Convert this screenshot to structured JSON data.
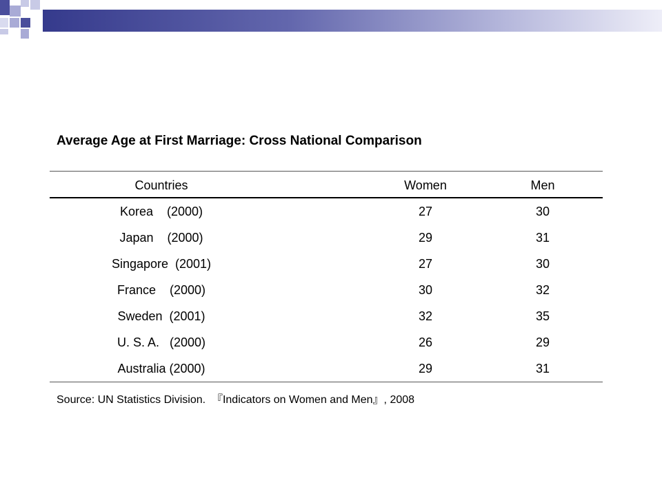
{
  "title": "Average Age at First Marriage: Cross National Comparison",
  "table": {
    "headers": [
      "Countries",
      "Women",
      "Men"
    ],
    "rows": [
      {
        "country": "Korea    (2000)",
        "women": "27",
        "men": "30"
      },
      {
        "country": "Japan    (2000)",
        "women": "29",
        "men": "31"
      },
      {
        "country": "Singapore  (2001)",
        "women": "27",
        "men": "30"
      },
      {
        "country": "France    (2000)",
        "women": "30",
        "men": "32"
      },
      {
        "country": "Sweden  (2001)",
        "women": "32",
        "men": "35"
      },
      {
        "country": "U. S. A.   (2000)",
        "women": "26",
        "men": "29"
      },
      {
        "country": "Australia (2000)",
        "women": "29",
        "men": "31"
      }
    ]
  },
  "source": "Source: UN Statistics Division.  『Indicators on Women and Men』, 2008",
  "colors": {
    "accent_dark": "#353a8c",
    "accent_light": "#b6b8dc"
  }
}
